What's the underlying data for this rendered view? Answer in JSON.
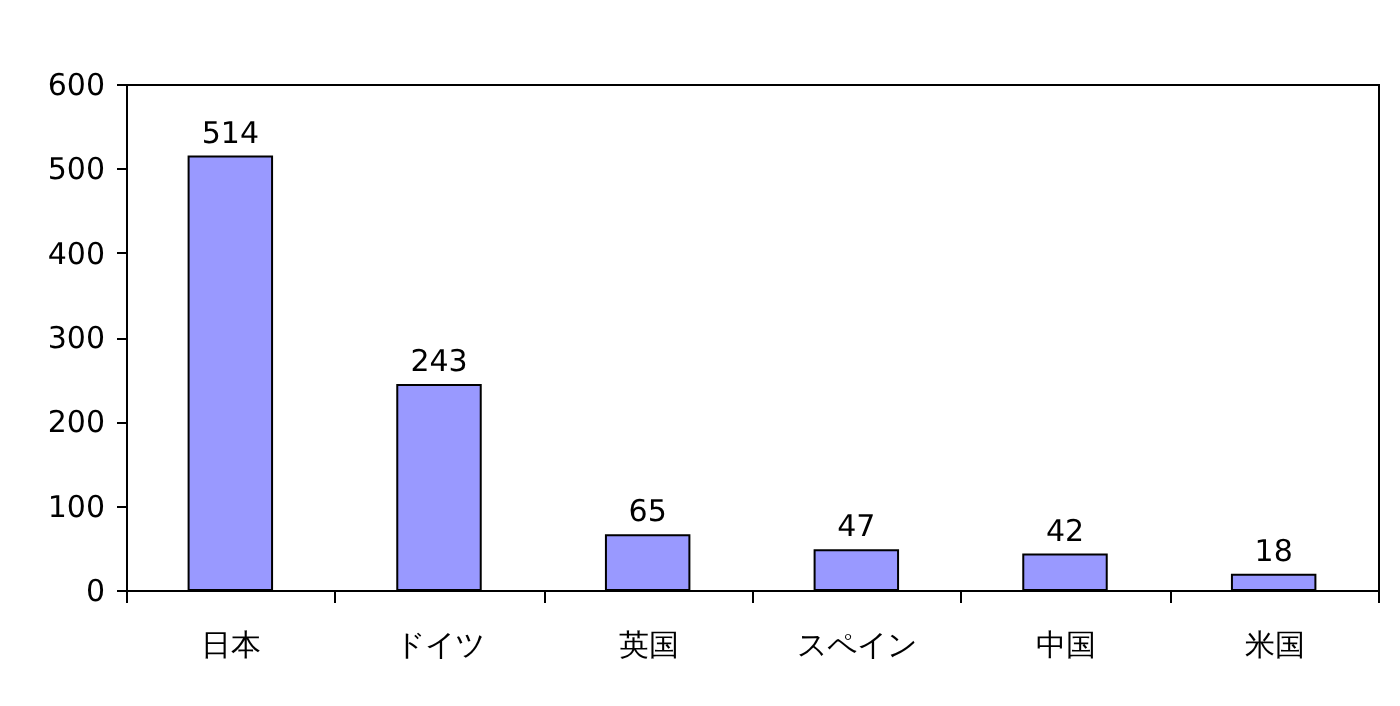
{
  "chart_data": {
    "type": "bar",
    "categories": [
      "日本",
      "ドイツ",
      "英国",
      "スペイン",
      "中国",
      "米国"
    ],
    "values": [
      514,
      243,
      65,
      47,
      42,
      18
    ],
    "color": "#9999ff",
    "ylim": [
      0,
      600
    ],
    "yticks": [
      0,
      100,
      200,
      300,
      400,
      500,
      600
    ],
    "grid": false,
    "data_labels": true
  }
}
